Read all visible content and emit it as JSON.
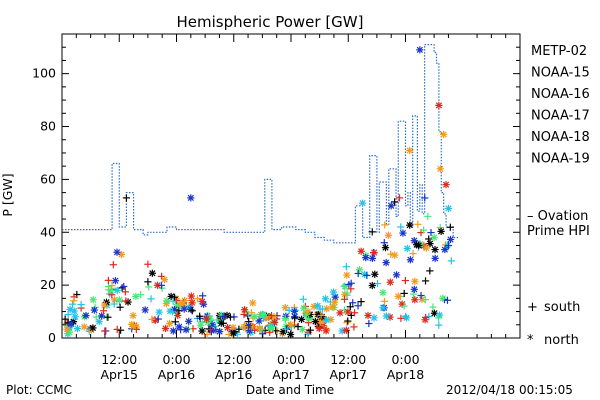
{
  "chart_data": {
    "type": "scatter",
    "title": "Hemispheric Power [GW]",
    "xlabel": "Date and Time",
    "ylabel": "P [GW]",
    "ylim": [
      0,
      115
    ],
    "xlim_hours": [
      0,
      96
    ],
    "yticks": [
      0,
      20,
      40,
      60,
      80,
      100
    ],
    "xticks": [
      {
        "hour": 12,
        "time": "12:00",
        "date": "Apr15"
      },
      {
        "hour": 24,
        "time": "0:00",
        "date": "Apr16"
      },
      {
        "hour": 36,
        "time": "12:00",
        "date": "Apr16"
      },
      {
        "hour": 48,
        "time": "0:00",
        "date": "Apr17"
      },
      {
        "hour": 60,
        "time": "12:00",
        "date": "Apr17"
      },
      {
        "hour": 72,
        "time": "0:00",
        "date": "Apr18"
      }
    ],
    "legend_position": "right",
    "series": [
      {
        "name": "METP-02",
        "color": "#000000"
      },
      {
        "name": "NOAA-15",
        "color": "#1a33cc"
      },
      {
        "name": "NOAA-16",
        "color": "#22c3e8"
      },
      {
        "name": "NOAA-17",
        "color": "#48e878"
      },
      {
        "name": "NOAA-18",
        "color": "#f59a1c"
      },
      {
        "name": "NOAA-19",
        "color": "#e0281a"
      }
    ],
    "ovation": {
      "label_line1": "– Ovation",
      "label_line2": "Prime HPI",
      "color": "#2a6fd0",
      "steps": [
        [
          0,
          41
        ],
        [
          10,
          41
        ],
        [
          10.5,
          66
        ],
        [
          11.5,
          66
        ],
        [
          12,
          42
        ],
        [
          13,
          42
        ],
        [
          13.5,
          55
        ],
        [
          14.5,
          55
        ],
        [
          15,
          41
        ],
        [
          16.5,
          41
        ],
        [
          17,
          39
        ],
        [
          18,
          40
        ],
        [
          22,
          42
        ],
        [
          24,
          41
        ],
        [
          33,
          41
        ],
        [
          34,
          40
        ],
        [
          42,
          40
        ],
        [
          42.5,
          60
        ],
        [
          43.5,
          60
        ],
        [
          44,
          41
        ],
        [
          46,
          42
        ],
        [
          49,
          41
        ],
        [
          51,
          40
        ],
        [
          53,
          38
        ],
        [
          55,
          37
        ],
        [
          57,
          36
        ],
        [
          61,
          36
        ],
        [
          61.5,
          50
        ],
        [
          62.5,
          50
        ],
        [
          63,
          38
        ],
        [
          64,
          38
        ],
        [
          64.5,
          69
        ],
        [
          65.5,
          69
        ],
        [
          66,
          40
        ],
        [
          66.5,
          59
        ],
        [
          67.5,
          59
        ],
        [
          68,
          43
        ],
        [
          68.5,
          64
        ],
        [
          69.5,
          64
        ],
        [
          70,
          46
        ],
        [
          70.5,
          82
        ],
        [
          71.5,
          82
        ],
        [
          72,
          50
        ],
        [
          72.5,
          55
        ],
        [
          73,
          42
        ],
        [
          73.5,
          84
        ],
        [
          74,
          84
        ],
        [
          74.5,
          48
        ],
        [
          75,
          58
        ],
        [
          75.5,
          47
        ],
        [
          76,
          111
        ],
        [
          77.5,
          111
        ],
        [
          78,
          108
        ],
        [
          78.5,
          104
        ],
        [
          79,
          78
        ],
        [
          79.5,
          55
        ],
        [
          80,
          47
        ],
        [
          80.5,
          42
        ],
        [
          81.5,
          42
        ],
        [
          82,
          38
        ],
        [
          83,
          38
        ]
      ]
    },
    "symbol_key": [
      {
        "symbol": "+",
        "label": "south"
      },
      {
        "symbol": "*",
        "label": "north"
      }
    ]
  },
  "footer": {
    "plot_source": "Plot: CCMC",
    "timestamp": "2012/04/18 00:15:05"
  }
}
